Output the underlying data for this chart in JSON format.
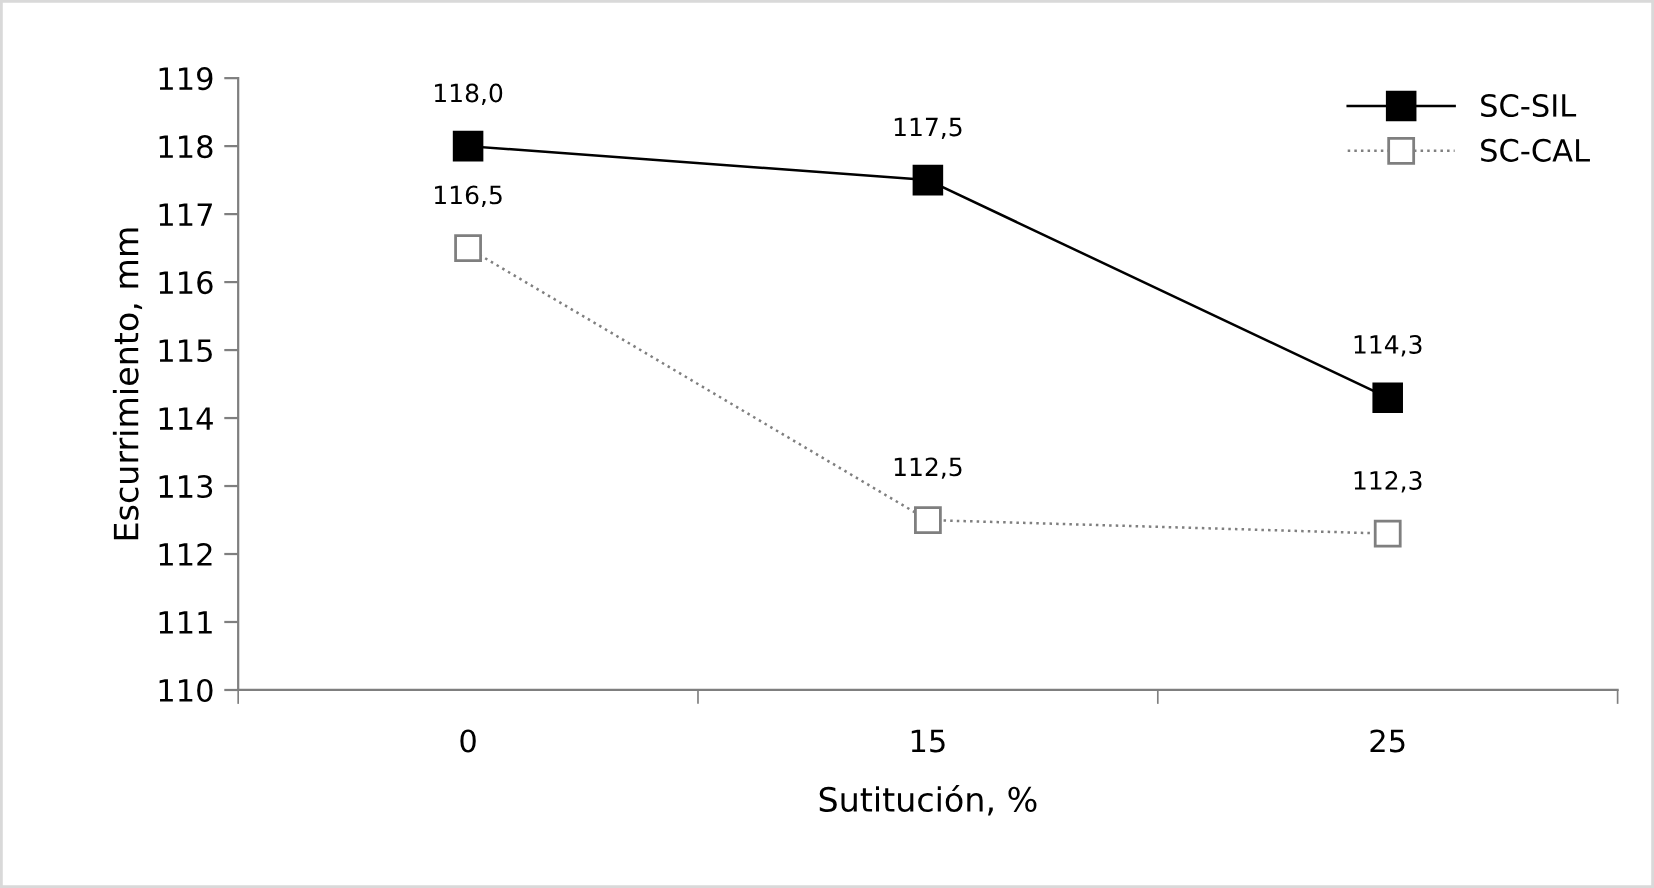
{
  "chart_data": {
    "type": "line",
    "xlabel": "Sutitución, %",
    "ylabel": "Escurrimiento, mm",
    "categories": [
      "0",
      "15",
      "25"
    ],
    "series": [
      {
        "name": "SC-SIL",
        "color": "#000000",
        "marker": "square",
        "line_style": "solid",
        "values": [
          118.0,
          117.5,
          114.3
        ],
        "value_labels": [
          "118,0",
          "117,5",
          "114,3"
        ]
      },
      {
        "name": "SC-CAL",
        "color": "#7f7f7f",
        "marker": "square",
        "line_style": "dotted",
        "values": [
          116.5,
          112.5,
          112.3
        ],
        "value_labels": [
          "116,5",
          "112,5",
          "112,3"
        ]
      }
    ],
    "ylim": [
      110,
      119
    ],
    "yticks": [
      110,
      111,
      112,
      113,
      114,
      115,
      116,
      117,
      118,
      119
    ],
    "grid": false,
    "legend": "top right"
  }
}
